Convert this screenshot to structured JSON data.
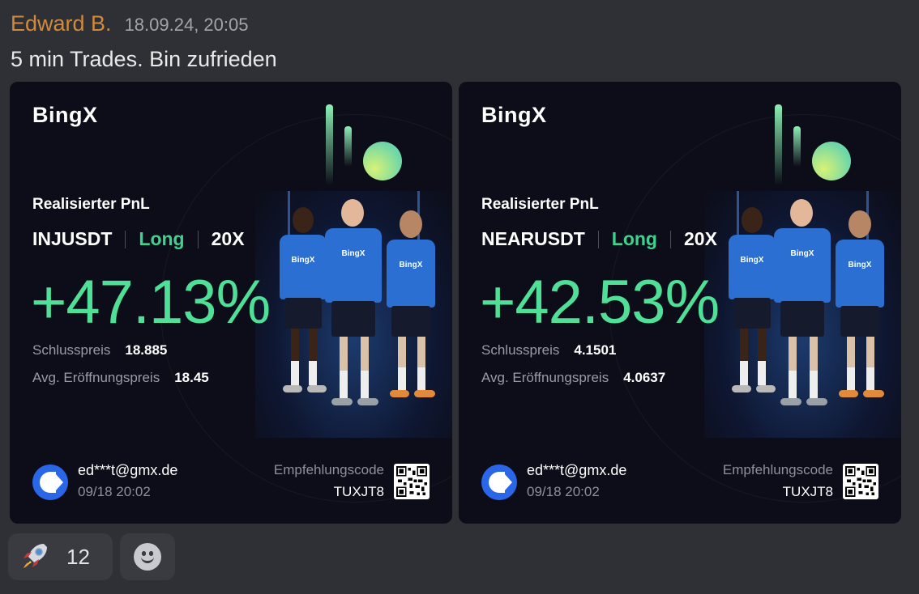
{
  "message": {
    "author": "Edward B.",
    "timestamp": "18.09.24, 20:05",
    "text": "5 min Trades. Bin zufrieden"
  },
  "colors": {
    "author": "#d08a3c",
    "profit": "#4fdf97",
    "long": "#3fd28f",
    "card_bg": "#0c0d18",
    "brand_blue": "#2966e8"
  },
  "cards": [
    {
      "brand": "BingX",
      "pnl_label": "Realisierter PnL",
      "pair": "INJUSDT",
      "side": "Long",
      "leverage": "20X",
      "pnl_percent": "+47.13%",
      "close_price_label": "Schlusspreis",
      "close_price": "18.885",
      "open_price_label": "Avg. Eröffnungspreis",
      "open_price": "18.45",
      "user_email": "ed***t@gmx.de",
      "date": "09/18 20:02",
      "referral_label": "Empfehlungscode",
      "referral_code": "TUXJT8",
      "jersey_text": "BingX"
    },
    {
      "brand": "BingX",
      "pnl_label": "Realisierter PnL",
      "pair": "NEARUSDT",
      "side": "Long",
      "leverage": "20X",
      "pnl_percent": "+42.53%",
      "close_price_label": "Schlusspreis",
      "close_price": "4.1501",
      "open_price_label": "Avg. Eröffnungspreis",
      "open_price": "4.0637",
      "user_email": "ed***t@gmx.de",
      "date": "09/18 20:02",
      "referral_label": "Empfehlungscode",
      "referral_code": "TUXJT8",
      "jersey_text": "BingX"
    }
  ],
  "reactions": [
    {
      "icon": "rocket-icon",
      "count": "12"
    },
    {
      "icon": "add-reaction-smiley-icon"
    }
  ]
}
